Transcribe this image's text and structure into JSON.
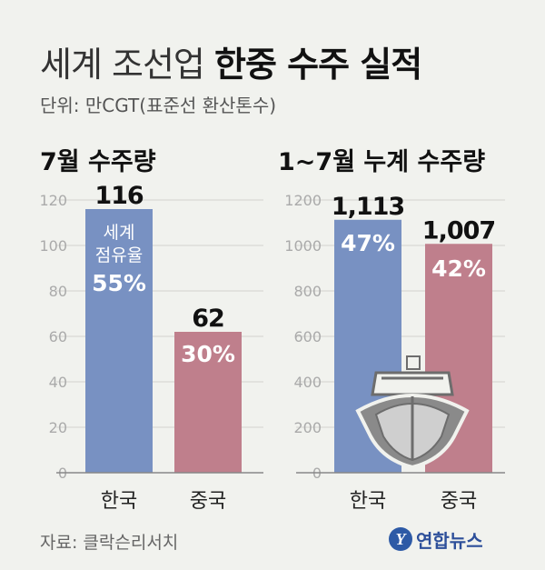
{
  "title": {
    "light": "세계 조선업",
    "bold": "한중 수주 실적"
  },
  "unit": "단위: 만CGT(표준선 환산톤수)",
  "source": "자료: 클락슨리서치",
  "logo": {
    "text": "연합뉴스",
    "mark": "Y"
  },
  "colors": {
    "korea": "#7891c2",
    "china": "#bf7f8c",
    "background": "#f1f2ee",
    "grid": "#d2d3cf"
  },
  "icon": "ship-icon",
  "chart_data": [
    {
      "type": "bar",
      "title": "7월 수주량",
      "categories": [
        "한국",
        "중국"
      ],
      "values": [
        116,
        62
      ],
      "value_labels": [
        "116",
        "62"
      ],
      "share_labels": [
        "55%",
        "30%"
      ],
      "inner_caption": [
        "세계",
        "점유율"
      ],
      "ylim": [
        0,
        120
      ],
      "yticks": [
        0,
        20,
        40,
        60,
        80,
        100,
        120
      ],
      "grid": true
    },
    {
      "type": "bar",
      "title": "1~7월 누계 수주량",
      "categories": [
        "한국",
        "중국"
      ],
      "values": [
        1113,
        1007
      ],
      "value_labels": [
        "1,113",
        "1,007"
      ],
      "share_labels": [
        "47%",
        "42%"
      ],
      "ylim": [
        0,
        1200
      ],
      "yticks": [
        0,
        200,
        400,
        600,
        800,
        1000,
        1200
      ],
      "grid": true
    }
  ]
}
